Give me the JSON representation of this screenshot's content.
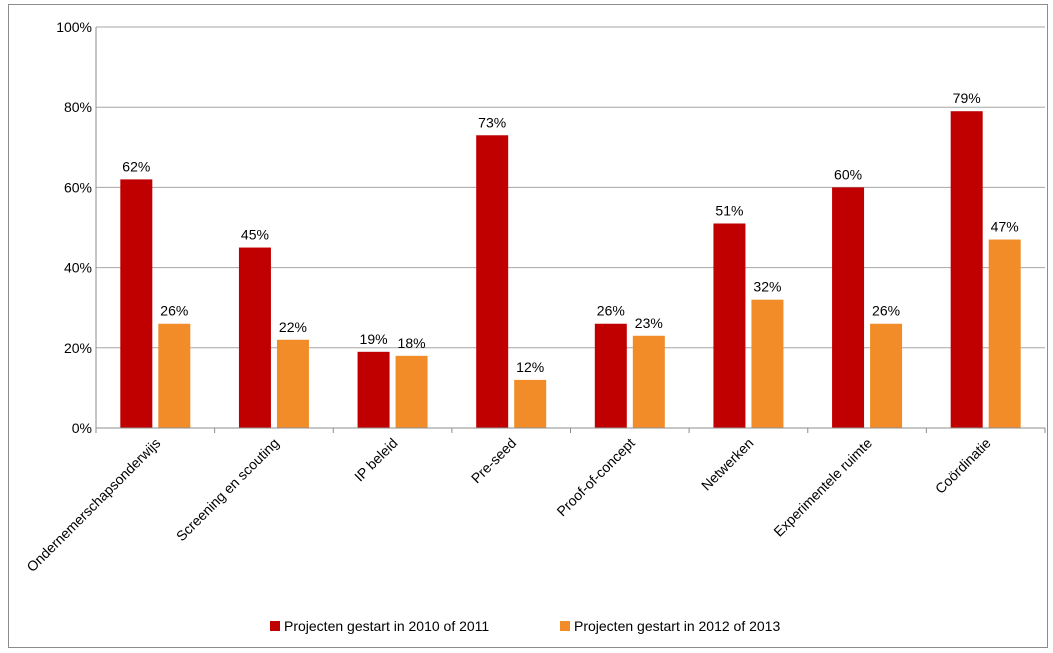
{
  "chart_data": {
    "type": "bar",
    "categories": [
      "Ondernemerschapsonderwijs",
      "Screening en scouting",
      "IP beleid",
      "Pre-seed",
      "Proof-of-concept",
      "Netwerken",
      "Experimentele ruimte",
      "Coördinatie"
    ],
    "series": [
      {
        "name": "Projecten gestart in 2010 of 2011",
        "color": "#c00000",
        "values": [
          62,
          45,
          19,
          73,
          26,
          51,
          60,
          79
        ],
        "labels": [
          "62%",
          "45%",
          "19%",
          "73%",
          "26%",
          "51%",
          "60%",
          "79%"
        ]
      },
      {
        "name": "Projecten gestart in 2012 of 2013",
        "color": "#f28c28",
        "values": [
          26,
          22,
          18,
          12,
          23,
          32,
          26,
          47
        ],
        "labels": [
          "26%",
          "22%",
          "18%",
          "12%",
          "23%",
          "32%",
          "26%",
          "47%"
        ]
      }
    ],
    "ylim": [
      0,
      100
    ],
    "yticks": [
      0,
      20,
      40,
      60,
      80,
      100
    ],
    "ytick_labels": [
      "0%",
      "20%",
      "40%",
      "60%",
      "80%",
      "100%"
    ],
    "grid": true,
    "legend_position": "bottom",
    "title": "",
    "xlabel": "",
    "ylabel": ""
  }
}
